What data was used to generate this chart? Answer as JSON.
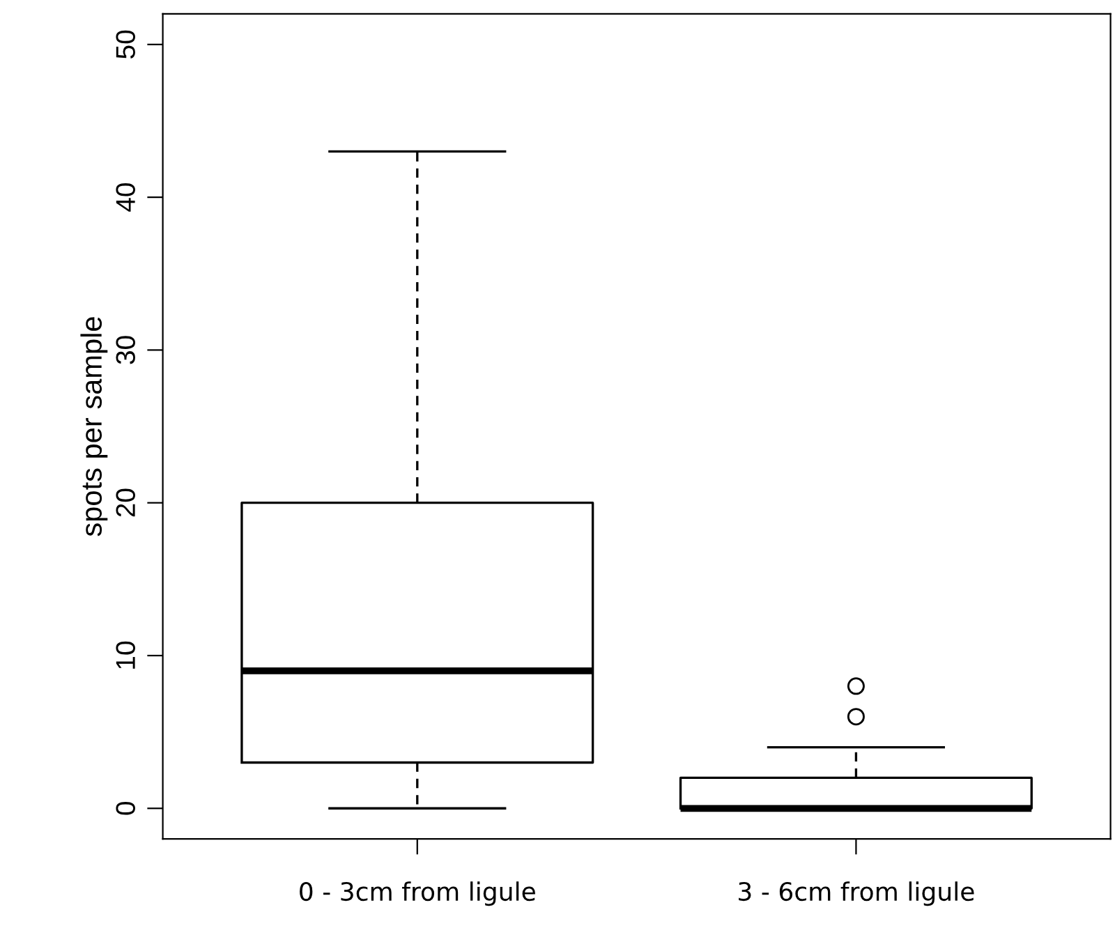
{
  "chart_data": {
    "type": "box",
    "ylabel": "spots per sample",
    "categories": [
      "0 - 3cm from ligule",
      "3 - 6cm from ligule"
    ],
    "boxes": [
      {
        "low": 0,
        "q1": 3,
        "median": 9,
        "q3": 20,
        "high": 43
      },
      {
        "low": 0,
        "q1": 0,
        "median": 0,
        "q3": 2,
        "high": 4,
        "outliers": [
          6,
          8
        ]
      }
    ],
    "ylim": [
      -2,
      52
    ],
    "yticks": [
      0,
      10,
      20,
      30,
      40,
      50
    ],
    "grid": false
  }
}
